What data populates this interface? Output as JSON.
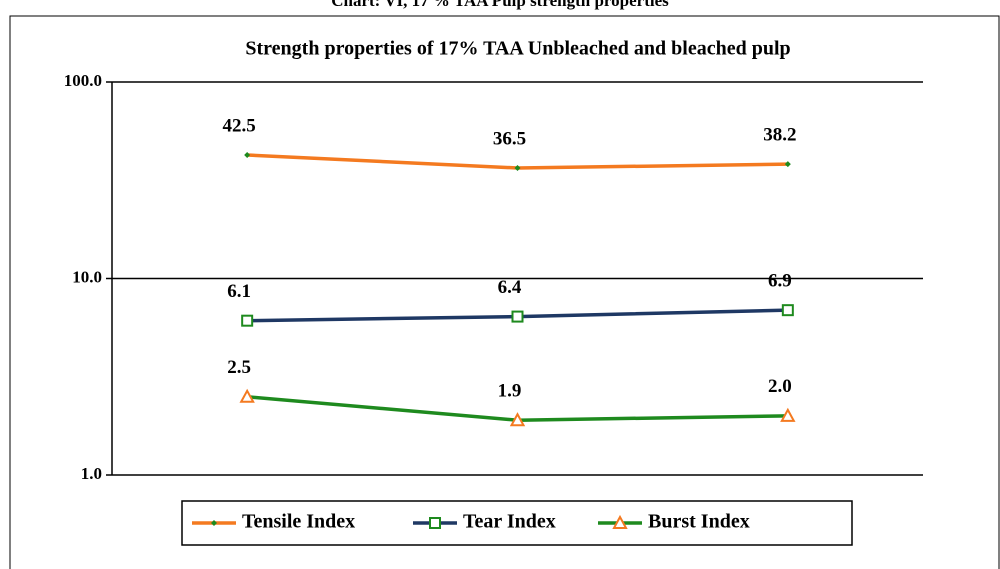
{
  "heading": "Chart: VI, 17 % TAA Pulp strength properties",
  "chart_data": {
    "type": "line",
    "title": "Strength properties of 17% TAA Unbleached and bleached pulp",
    "categories": [
      null,
      null,
      null
    ],
    "series": [
      {
        "name": "Tensile Index",
        "color": "#f47a20",
        "marker": "diamond",
        "marker_color": "#1e8a1e",
        "values": [
          42.5,
          36.5,
          38.2
        ]
      },
      {
        "name": "Tear Index",
        "color": "#1f3864",
        "marker": "square",
        "marker_color": "#1e8a1e",
        "values": [
          6.1,
          6.4,
          6.9
        ]
      },
      {
        "name": "Burst Index",
        "color": "#1e8a1e",
        "marker": "triangle",
        "marker_color": "#f47a20",
        "values": [
          2.5,
          1.9,
          2.0
        ],
        "value_labels": [
          "2.5",
          "1.9",
          "2.0"
        ]
      }
    ],
    "log_scale": true,
    "ylim": [
      1,
      100
    ],
    "yticks": [
      {
        "value": 1,
        "label": "1.0"
      },
      {
        "value": 10,
        "label": "10.0"
      },
      {
        "value": 100,
        "label": "100.0"
      }
    ],
    "grid": true,
    "legend": "bottom"
  }
}
